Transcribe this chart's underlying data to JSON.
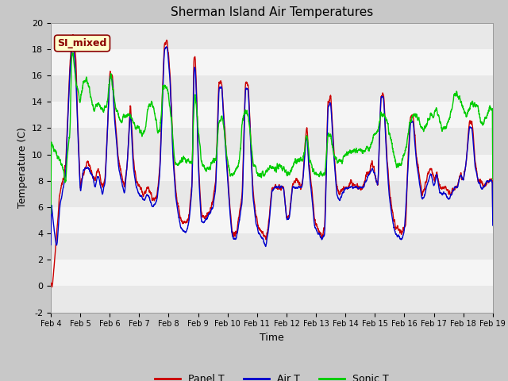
{
  "title": "Sherman Island Air Temperatures",
  "xlabel": "Time",
  "ylabel": "Temperature (C)",
  "ylim": [
    -2,
    20
  ],
  "xlim": [
    0,
    15
  ],
  "x_tick_labels": [
    "Feb 4",
    "Feb 5",
    "Feb 6",
    "Feb 7",
    "Feb 8",
    "Feb 9",
    "Feb 10",
    "Feb 11",
    "Feb 12",
    "Feb 13",
    "Feb 14",
    "Feb 15",
    "Feb 16",
    "Feb 17",
    "Feb 18",
    "Feb 19"
  ],
  "annotation": "SI_mixed",
  "fig_bg": "#c8c8c8",
  "plot_bg": "#ffffff",
  "band_even": "#e8e8e8",
  "band_odd": "#f5f5f5",
  "line_colors": {
    "panel": "#cc0000",
    "air": "#0000cc",
    "sonic": "#00cc00"
  },
  "legend_labels": [
    "Panel T",
    "Air T",
    "Sonic T"
  ],
  "title_fontsize": 11,
  "label_fontsize": 9,
  "tick_fontsize": 8
}
